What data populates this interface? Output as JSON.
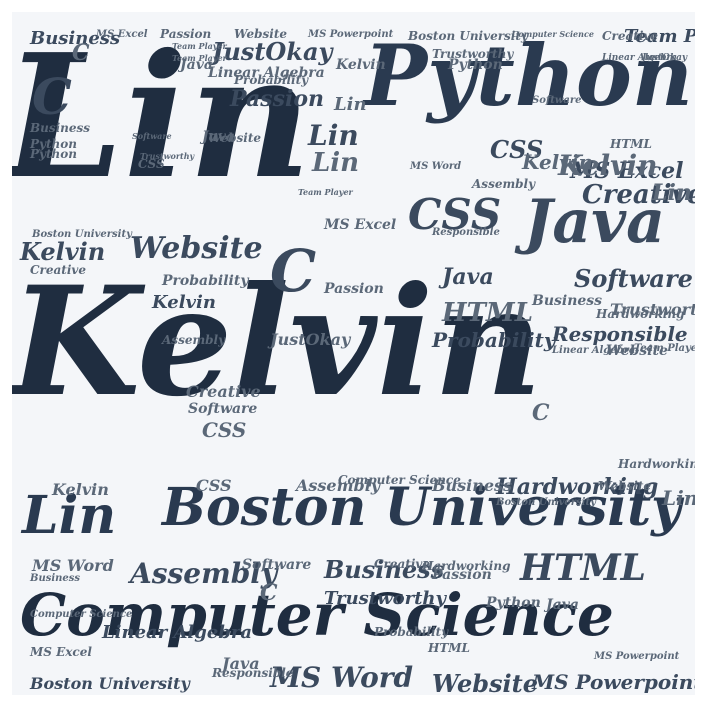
{
  "cloud": {
    "colors": {
      "dark": "#1f2d40",
      "mid": "#3b4a5e",
      "light": "#5b6878",
      "background": "#f4f6f9"
    },
    "main": [
      "Kelvin",
      "Lin",
      "Python",
      "Boston University",
      "Computer Science",
      "Lin",
      "Java",
      "CSS",
      "C",
      "C",
      "Website",
      "Kelvin",
      "Lin",
      "HTML",
      "Creative",
      "Software",
      "MS Excel",
      "Assembly",
      "MS Word",
      "Website",
      "Business",
      "Hardworking",
      "Trustworthy",
      "Team Player",
      "Probability",
      "Responsible",
      "MS Powerpoint",
      "Passion",
      "JustOkay",
      "Linear Algebra",
      "Business",
      "Kelvin",
      "CSS",
      "Java",
      "Boston University"
    ],
    "fill": [
      "Business",
      "MS Excel",
      "Passion",
      "Website",
      "MS Powerpoint",
      "Boston University",
      "Computer Science",
      "Creative",
      "Linear Algebra",
      "Team Player",
      "JustOkay",
      "Kelvin",
      "Trustworthy",
      "Java",
      "Python",
      "Team Player",
      "Lin",
      "C",
      "Probability",
      "Linear Algebra",
      "Software",
      "HTML",
      "Assembly",
      "Python",
      "Website",
      "Lin",
      "Software",
      "CSS",
      "Trustworthy",
      "MS Word",
      "Team Player",
      "Boston University",
      "Kelvin",
      "Hardworking",
      "Business",
      "Creative",
      "Computer Science",
      "MS Excel",
      "Website",
      "Responsible",
      "Probability",
      "Lin",
      "Java",
      "C",
      "Passion",
      "Assembly",
      "HTML",
      "Python",
      "Kelvin",
      "Creative",
      "JustOkay",
      "Software",
      "MS Word",
      "Java",
      "CSS",
      "Team Player",
      "Business",
      "Linear Algebra",
      "Computer Science",
      "Hardworking",
      "Trustworthy",
      "Boston University",
      "Passion",
      "MS Excel",
      "Website",
      "Lin",
      "Kelvin",
      "Responsible",
      "Python",
      "Assembly",
      "Probability",
      "C",
      "MS Powerpoint",
      "HTML",
      "Creative",
      "Software",
      "Java",
      "CSS",
      "Business",
      "Hardworking"
    ]
  }
}
